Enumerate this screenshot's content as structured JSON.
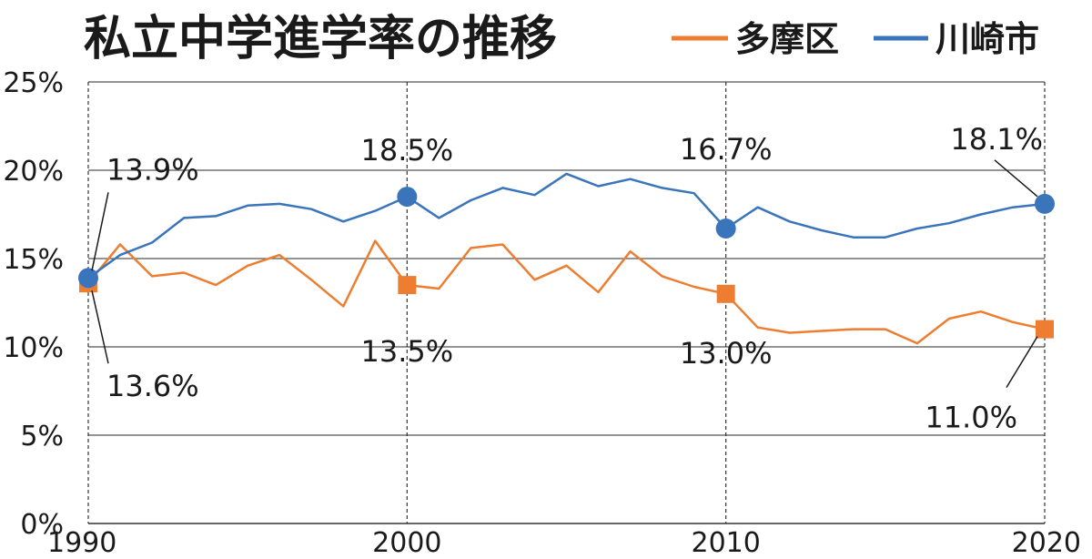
{
  "chart_data": {
    "type": "line",
    "title": "私立中学進学率の推移",
    "x": [
      1990,
      1991,
      1992,
      1993,
      1994,
      1995,
      1996,
      1997,
      1998,
      1999,
      2000,
      2001,
      2002,
      2003,
      2004,
      2005,
      2006,
      2007,
      2008,
      2009,
      2010,
      2011,
      2012,
      2013,
      2014,
      2015,
      2016,
      2017,
      2018,
      2019,
      2020
    ],
    "series": [
      {
        "name": "多摩区",
        "color": "#ed7d31",
        "marker": "square",
        "values": [
          13.6,
          15.8,
          14.0,
          14.2,
          13.5,
          14.6,
          15.2,
          13.8,
          12.3,
          16.0,
          13.5,
          13.3,
          15.6,
          15.8,
          13.8,
          14.6,
          13.1,
          15.4,
          14.0,
          13.4,
          13.0,
          11.1,
          10.8,
          10.9,
          11.0,
          11.0,
          10.2,
          11.6,
          12.0,
          11.4,
          11.0
        ],
        "highlight_years": [
          1990,
          2000,
          2010,
          2020
        ]
      },
      {
        "name": "川崎市",
        "color": "#3a74bb",
        "marker": "circle",
        "values": [
          13.9,
          15.2,
          15.9,
          17.3,
          17.4,
          18.0,
          18.1,
          17.8,
          17.1,
          17.7,
          18.5,
          17.3,
          18.3,
          19.0,
          18.6,
          19.8,
          19.1,
          19.5,
          19.0,
          18.7,
          16.7,
          17.9,
          17.1,
          16.6,
          16.2,
          16.2,
          16.7,
          17.0,
          17.5,
          17.9,
          18.1
        ],
        "highlight_years": [
          1990,
          2000,
          2010,
          2020
        ]
      }
    ],
    "ylim": [
      0,
      25
    ],
    "yticks": [
      "0%",
      "5%",
      "10%",
      "15%",
      "20%",
      "25%"
    ],
    "xticks": [
      "1990",
      "2000",
      "2010",
      "2020"
    ],
    "data_labels": [
      {
        "series": 1,
        "year": 1990,
        "text": "13.9%"
      },
      {
        "series": 0,
        "year": 1990,
        "text": "13.6%"
      },
      {
        "series": 1,
        "year": 2000,
        "text": "18.5%"
      },
      {
        "series": 0,
        "year": 2000,
        "text": "13.5%"
      },
      {
        "series": 1,
        "year": 2010,
        "text": "16.7%"
      },
      {
        "series": 0,
        "year": 2010,
        "text": "13.0%"
      },
      {
        "series": 1,
        "year": 2020,
        "text": "18.1%"
      },
      {
        "series": 0,
        "year": 2020,
        "text": "11.0%"
      }
    ],
    "grid": true,
    "legend_position": "top-right"
  }
}
